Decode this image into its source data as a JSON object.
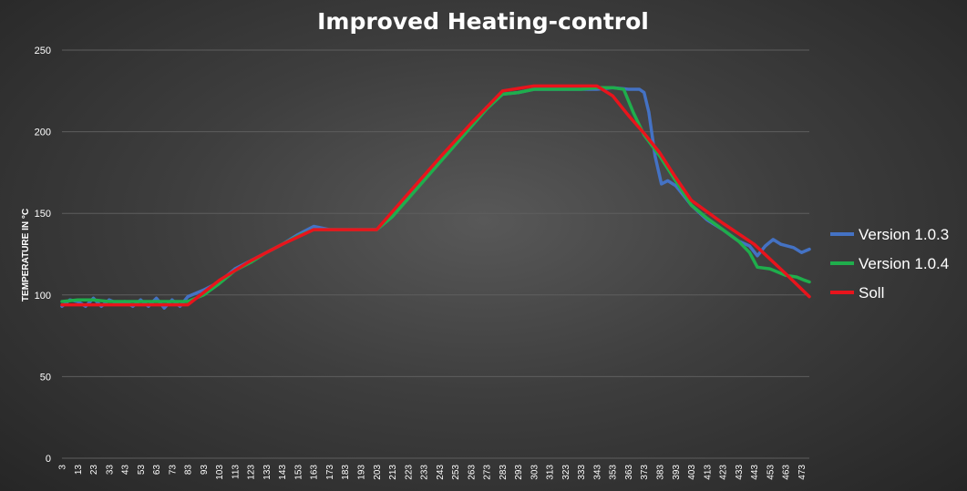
{
  "chart_data": {
    "type": "line",
    "title": "Improved Heating-control",
    "xlabel": "",
    "ylabel": "TEMPERATURE IN °C",
    "ylim": [
      0,
      250
    ],
    "yticks": [
      0,
      50,
      100,
      150,
      200,
      250
    ],
    "grid": true,
    "legend_position": "right",
    "x": [
      3,
      13,
      23,
      33,
      43,
      53,
      63,
      73,
      83,
      93,
      103,
      113,
      123,
      133,
      143,
      153,
      163,
      173,
      183,
      193,
      203,
      213,
      223,
      233,
      243,
      253,
      263,
      273,
      283,
      293,
      303,
      313,
      323,
      333,
      343,
      353,
      363,
      373,
      383,
      393,
      403,
      413,
      423,
      433,
      443,
      453,
      463,
      473
    ],
    "x_tick_labels": [
      "3",
      "13",
      "23",
      "33",
      "43",
      "53",
      "63",
      "73",
      "83",
      "93",
      "103",
      "113",
      "123",
      "133",
      "143",
      "153",
      "163",
      "173",
      "183",
      "193",
      "203",
      "213",
      "223",
      "233",
      "243",
      "253",
      "263",
      "273",
      "283",
      "293",
      "303",
      "313",
      "323",
      "333",
      "343",
      "353",
      "363",
      "373",
      "383",
      "393",
      "403",
      "413",
      "423",
      "433",
      "443",
      "453",
      "463",
      "473"
    ],
    "series": [
      {
        "name": "Version 1.0.3",
        "color": "#4472c4",
        "points": [
          [
            3,
            93
          ],
          [
            8,
            97
          ],
          [
            13,
            96
          ],
          [
            18,
            93
          ],
          [
            23,
            98
          ],
          [
            28,
            93
          ],
          [
            33,
            97
          ],
          [
            38,
            95
          ],
          [
            43,
            96
          ],
          [
            48,
            93
          ],
          [
            53,
            97
          ],
          [
            58,
            93
          ],
          [
            63,
            98
          ],
          [
            68,
            92
          ],
          [
            73,
            97
          ],
          [
            78,
            93
          ],
          [
            83,
            99
          ],
          [
            88,
            101
          ],
          [
            93,
            103
          ],
          [
            103,
            108
          ],
          [
            113,
            116
          ],
          [
            123,
            121
          ],
          [
            133,
            126
          ],
          [
            143,
            131
          ],
          [
            153,
            137
          ],
          [
            163,
            142
          ],
          [
            173,
            140
          ],
          [
            183,
            140
          ],
          [
            193,
            140
          ],
          [
            203,
            140
          ],
          [
            213,
            148
          ],
          [
            223,
            160
          ],
          [
            233,
            171
          ],
          [
            243,
            182
          ],
          [
            253,
            193
          ],
          [
            263,
            204
          ],
          [
            273,
            215
          ],
          [
            283,
            223
          ],
          [
            293,
            224
          ],
          [
            303,
            226
          ],
          [
            313,
            226
          ],
          [
            323,
            226
          ],
          [
            333,
            226
          ],
          [
            343,
            226
          ],
          [
            353,
            227
          ],
          [
            363,
            226
          ],
          [
            370,
            226
          ],
          [
            373,
            224
          ],
          [
            376,
            212
          ],
          [
            380,
            185
          ],
          [
            384,
            168
          ],
          [
            388,
            170
          ],
          [
            393,
            167
          ],
          [
            403,
            155
          ],
          [
            413,
            146
          ],
          [
            423,
            140
          ],
          [
            433,
            133
          ],
          [
            440,
            130
          ],
          [
            445,
            124
          ],
          [
            450,
            130
          ],
          [
            455,
            134
          ],
          [
            460,
            131
          ],
          [
            468,
            129
          ],
          [
            473,
            126
          ],
          [
            478,
            128
          ]
        ]
      },
      {
        "name": "Version 1.0.4",
        "color": "#1fae4c",
        "points": [
          [
            3,
            96
          ],
          [
            13,
            97
          ],
          [
            23,
            97
          ],
          [
            33,
            96
          ],
          [
            43,
            96
          ],
          [
            53,
            96
          ],
          [
            63,
            96
          ],
          [
            73,
            96
          ],
          [
            83,
            96
          ],
          [
            93,
            100
          ],
          [
            103,
            107
          ],
          [
            113,
            115
          ],
          [
            123,
            120
          ],
          [
            133,
            126
          ],
          [
            143,
            131
          ],
          [
            153,
            136
          ],
          [
            163,
            140
          ],
          [
            173,
            140
          ],
          [
            183,
            140
          ],
          [
            193,
            140
          ],
          [
            203,
            140
          ],
          [
            213,
            148
          ],
          [
            223,
            159
          ],
          [
            233,
            170
          ],
          [
            243,
            181
          ],
          [
            253,
            192
          ],
          [
            263,
            203
          ],
          [
            273,
            214
          ],
          [
            283,
            223
          ],
          [
            293,
            224
          ],
          [
            303,
            226
          ],
          [
            313,
            226
          ],
          [
            323,
            226
          ],
          [
            333,
            226
          ],
          [
            343,
            227
          ],
          [
            353,
            227
          ],
          [
            360,
            226
          ],
          [
            366,
            212
          ],
          [
            373,
            198
          ],
          [
            383,
            185
          ],
          [
            393,
            170
          ],
          [
            403,
            155
          ],
          [
            413,
            147
          ],
          [
            423,
            140
          ],
          [
            433,
            133
          ],
          [
            440,
            126
          ],
          [
            445,
            117
          ],
          [
            453,
            116
          ],
          [
            463,
            112
          ],
          [
            470,
            111
          ],
          [
            475,
            109
          ],
          [
            478,
            108
          ]
        ]
      },
      {
        "name": "Soll",
        "color": "#e8141c",
        "points": [
          [
            3,
            94
          ],
          [
            83,
            94
          ],
          [
            103,
            109
          ],
          [
            123,
            121
          ],
          [
            143,
            131
          ],
          [
            163,
            140
          ],
          [
            203,
            140
          ],
          [
            223,
            162
          ],
          [
            243,
            184
          ],
          [
            263,
            205
          ],
          [
            283,
            225
          ],
          [
            303,
            228
          ],
          [
            343,
            228
          ],
          [
            353,
            222
          ],
          [
            363,
            210
          ],
          [
            373,
            199
          ],
          [
            383,
            187
          ],
          [
            393,
            172
          ],
          [
            403,
            158
          ],
          [
            423,
            144
          ],
          [
            443,
            131
          ],
          [
            463,
            113
          ],
          [
            478,
            99
          ]
        ]
      }
    ]
  }
}
